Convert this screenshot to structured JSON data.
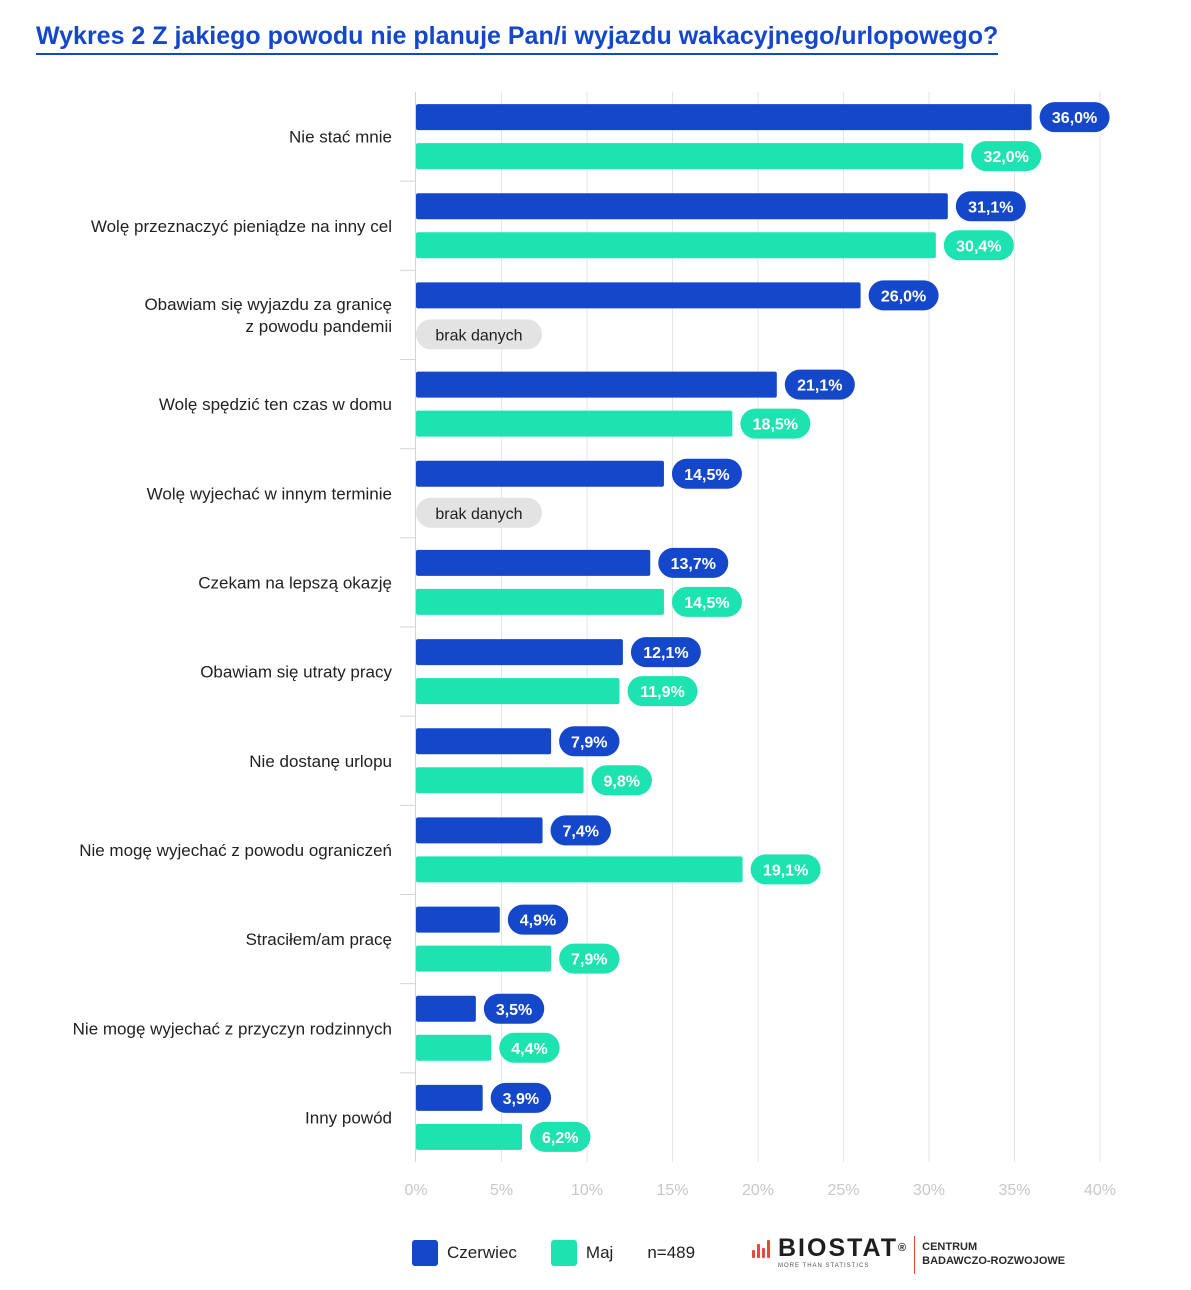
{
  "title": "Wykres 2 Z jakiego powodu nie planuje Pan/i wyjazdu wakacyjnego/urlopowego?",
  "colors": {
    "series1": "#1447c9",
    "series2": "#1de3b0",
    "missing": "#e3e3e3",
    "grid": "#e6e6e6",
    "tick": "#c8c8c8",
    "title": "#1447c9"
  },
  "legend": {
    "series1": "Czerwiec",
    "series2": "Maj",
    "sample": "n=489"
  },
  "logo": {
    "name": "BIOSTAT",
    "registered": "®",
    "tagline": "MORE THAN STATISTICS",
    "center_line1": "CENTRUM",
    "center_line2": "BADAWCZO-ROZWOJOWE"
  },
  "chart_data": {
    "type": "bar",
    "orientation": "horizontal",
    "title": "Wykres 2 Z jakiego powodu nie planuje Pan/i wyjazdu wakacyjnego/urlopowego?",
    "categories": [
      [
        "Nie stać mnie"
      ],
      [
        "Wolę przeznaczyć pieniądze na inny cel"
      ],
      [
        "Obawiam się wyjazdu za granicę",
        "z powodu pandemii"
      ],
      [
        "Wolę spędzić ten czas w domu"
      ],
      [
        "Wolę wyjechać w innym terminie"
      ],
      [
        "Czekam na lepszą okazję"
      ],
      [
        "Obawiam się utraty pracy"
      ],
      [
        "Nie dostanę urlopu"
      ],
      [
        "Nie mogę wyjechać z powodu ograniczeń"
      ],
      [
        "Straciłem/am pracę"
      ],
      [
        "Nie mogę wyjechać z przyczyn rodzinnych"
      ],
      [
        "Inny powód"
      ]
    ],
    "series": [
      {
        "name": "Czerwiec",
        "values": [
          36.0,
          31.1,
          26.0,
          21.1,
          14.5,
          13.7,
          12.1,
          7.9,
          7.4,
          4.9,
          3.5,
          3.9
        ],
        "labels": [
          "36,0%",
          "31,1%",
          "26,0%",
          "21,1%",
          "14,5%",
          "13,7%",
          "12,1%",
          "7,9%",
          "7,4%",
          "4,9%",
          "3,5%",
          "3,9%"
        ]
      },
      {
        "name": "Maj",
        "values": [
          32.0,
          30.4,
          null,
          18.5,
          null,
          14.5,
          11.9,
          9.8,
          19.1,
          7.9,
          4.4,
          6.2
        ],
        "labels": [
          "32,0%",
          "30,4%",
          "brak danych",
          "18,5%",
          "brak danych",
          "14,5%",
          "11,9%",
          "9,8%",
          "19,1%",
          "7,9%",
          "4,4%",
          "6,2%"
        ]
      }
    ],
    "xlim": [
      0,
      40
    ],
    "xticks": [
      0,
      5,
      10,
      15,
      20,
      25,
      30,
      35,
      40
    ],
    "xtick_labels": [
      "0%",
      "5%",
      "10%",
      "15%",
      "20%",
      "25%",
      "30%",
      "35%",
      "40%"
    ],
    "grid": true,
    "legend_position": "bottom"
  }
}
